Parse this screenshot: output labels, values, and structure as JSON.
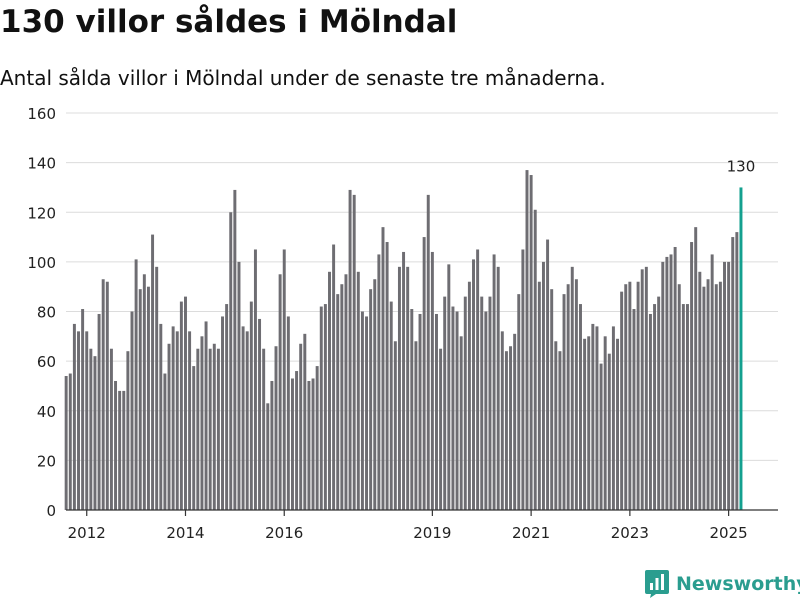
{
  "header": {
    "title": "130 villor såldes i Mölndal",
    "subtitle": "Antal sålda villor i Mölndal under de senaste tre månaderna."
  },
  "brand": {
    "name": "Newsworthy",
    "icon": "newsworthy-logo-icon"
  },
  "colors": {
    "bar": "#6e6d72",
    "highlight": "#14a08f",
    "grid": "#dcdcdc",
    "axis": "#333333",
    "brand": "#2a9d8f"
  },
  "chart_data": {
    "type": "bar",
    "title": "130 villor såldes i Mölndal",
    "subtitle": "Antal sålda villor i Mölndal under de senaste tre månaderna.",
    "xlabel": "",
    "ylabel": "",
    "ylim": [
      0,
      160
    ],
    "yticks": [
      0,
      20,
      40,
      60,
      80,
      100,
      120,
      140,
      160
    ],
    "grid": true,
    "x_range": [
      2011.58,
      2026.0
    ],
    "xticks": [
      {
        "value": 2012.0,
        "label": "2012"
      },
      {
        "value": 2014.0,
        "label": "2014"
      },
      {
        "value": 2016.0,
        "label": "2016"
      },
      {
        "value": 2019.0,
        "label": "2019"
      },
      {
        "value": 2021.0,
        "label": "2021"
      },
      {
        "value": 2023.0,
        "label": "2023"
      },
      {
        "value": 2025.0,
        "label": "2025"
      }
    ],
    "series": [
      {
        "name": "Antal sålda villor",
        "start": 2011.5833,
        "step": 0.0833333,
        "values": [
          54,
          55,
          75,
          72,
          81,
          72,
          65,
          62,
          79,
          93,
          92,
          65,
          52,
          48,
          48,
          64,
          80,
          101,
          89,
          95,
          90,
          111,
          98,
          75,
          55,
          67,
          74,
          72,
          84,
          86,
          72,
          58,
          65,
          70,
          76,
          65,
          67,
          65,
          78,
          83,
          120,
          129,
          100,
          74,
          72,
          84,
          105,
          77,
          65,
          43,
          52,
          66,
          95,
          105,
          78,
          53,
          56,
          67,
          71,
          52,
          53,
          58,
          82,
          83,
          96,
          107,
          87,
          91,
          95,
          129,
          127,
          96,
          80,
          78,
          89,
          93,
          103,
          114,
          108,
          84,
          68,
          98,
          104,
          98,
          81,
          68,
          79,
          110,
          127,
          104,
          79,
          65,
          86,
          99,
          82,
          80,
          70,
          86,
          92,
          101,
          105,
          86,
          80,
          86,
          103,
          98,
          72,
          64,
          66,
          71,
          87,
          105,
          137,
          135,
          121,
          92,
          100,
          109,
          89,
          68,
          64,
          87,
          91,
          98,
          93,
          83,
          69,
          70,
          75,
          74,
          59,
          70,
          63,
          74,
          69,
          88,
          91,
          92,
          81,
          92,
          97,
          98,
          79,
          83,
          86,
          100,
          102,
          103,
          106,
          91,
          83,
          83,
          108,
          114,
          96,
          90,
          93,
          103,
          91,
          92,
          100,
          100,
          110,
          112,
          130
        ],
        "highlight_last": true,
        "last_label": "130"
      }
    ]
  }
}
